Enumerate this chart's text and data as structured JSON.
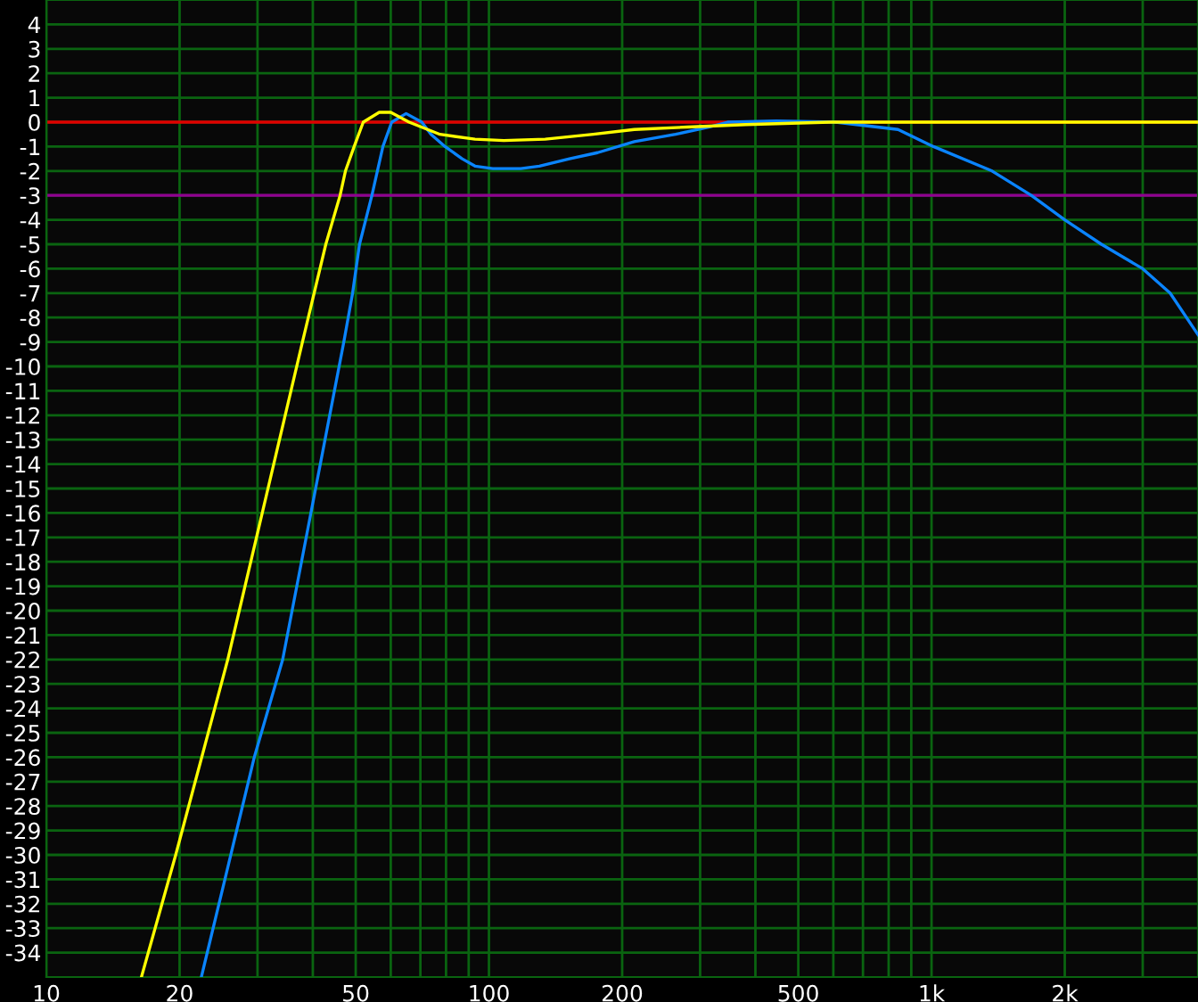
{
  "chart_data": {
    "type": "line",
    "xlim": [
      10,
      4000
    ],
    "ylim": [
      -35,
      5
    ],
    "log": "x",
    "grid": true,
    "marker": "none",
    "line_style": "solid",
    "xticks": [
      {
        "value": 10,
        "label": "10"
      },
      {
        "value": 20,
        "label": "20"
      },
      {
        "value": 30,
        "label": null
      },
      {
        "value": 40,
        "label": null
      },
      {
        "value": 50,
        "label": "50"
      },
      {
        "value": 60,
        "label": null
      },
      {
        "value": 70,
        "label": null
      },
      {
        "value": 80,
        "label": null
      },
      {
        "value": 90,
        "label": null
      },
      {
        "value": 100,
        "label": "100"
      },
      {
        "value": 200,
        "label": "200"
      },
      {
        "value": 300,
        "label": null
      },
      {
        "value": 400,
        "label": null
      },
      {
        "value": 500,
        "label": "500"
      },
      {
        "value": 600,
        "label": null
      },
      {
        "value": 700,
        "label": null
      },
      {
        "value": 800,
        "label": null
      },
      {
        "value": 900,
        "label": null
      },
      {
        "value": 1000,
        "label": "1k"
      },
      {
        "value": 2000,
        "label": "2k"
      },
      {
        "value": 3000,
        "label": null
      }
    ],
    "yticks": [
      4,
      3,
      2,
      1,
      0,
      -1,
      -2,
      -3,
      -4,
      -5,
      -6,
      -7,
      -8,
      -9,
      -10,
      -11,
      -12,
      -13,
      -14,
      -15,
      -16,
      -17,
      -18,
      -19,
      -20,
      -21,
      -22,
      -23,
      -24,
      -25,
      -26,
      -27,
      -28,
      -29,
      -30,
      -31,
      -32,
      -33,
      -34
    ],
    "ref_lines": [
      {
        "axis": "y",
        "value": 0,
        "color": "#e00000"
      },
      {
        "axis": "y",
        "value": -3,
        "color": "#900090"
      }
    ],
    "series": [
      {
        "color": "#ffff00",
        "x": [
          16.4,
          19.6,
          25.7,
          37.9,
          42.8,
          46.1,
          47.4,
          49.6,
          52,
          56.5,
          60,
          66,
          77.5,
          93,
          108,
          134,
          172,
          213,
          281,
          380,
          590,
          1000,
          2000,
          4000
        ],
        "values": [
          -35,
          -30,
          -22,
          -9,
          -5,
          -3,
          -2,
          -1,
          0,
          0.4,
          0.4,
          0,
          -0.5,
          -0.7,
          -0.75,
          -0.7,
          -0.5,
          -0.3,
          -0.2,
          -0.1,
          0,
          0,
          0,
          0
        ]
      },
      {
        "color": "#0a84ff",
        "x": [
          22.4,
          29.5,
          34.2,
          47,
          49.2,
          51,
          54.4,
          57.6,
          60.3,
          65,
          70.5,
          74,
          79.6,
          87,
          93,
          102,
          118,
          130,
          152,
          176,
          213,
          264,
          315,
          346,
          446,
          607,
          840,
          1010,
          1370,
          1680,
          2000,
          2420,
          3000,
          3460,
          4000
        ],
        "values": [
          -35,
          -26,
          -22,
          -9,
          -7,
          -5,
          -3,
          -1,
          0,
          0.35,
          0,
          -0.5,
          -1,
          -1.5,
          -1.8,
          -1.9,
          -1.9,
          -1.8,
          -1.5,
          -1.25,
          -0.8,
          -0.5,
          -0.2,
          0,
          0.05,
          0,
          -0.3,
          -1,
          -2,
          -3,
          -4,
          -5,
          -6,
          -7,
          -8.7
        ]
      }
    ]
  }
}
